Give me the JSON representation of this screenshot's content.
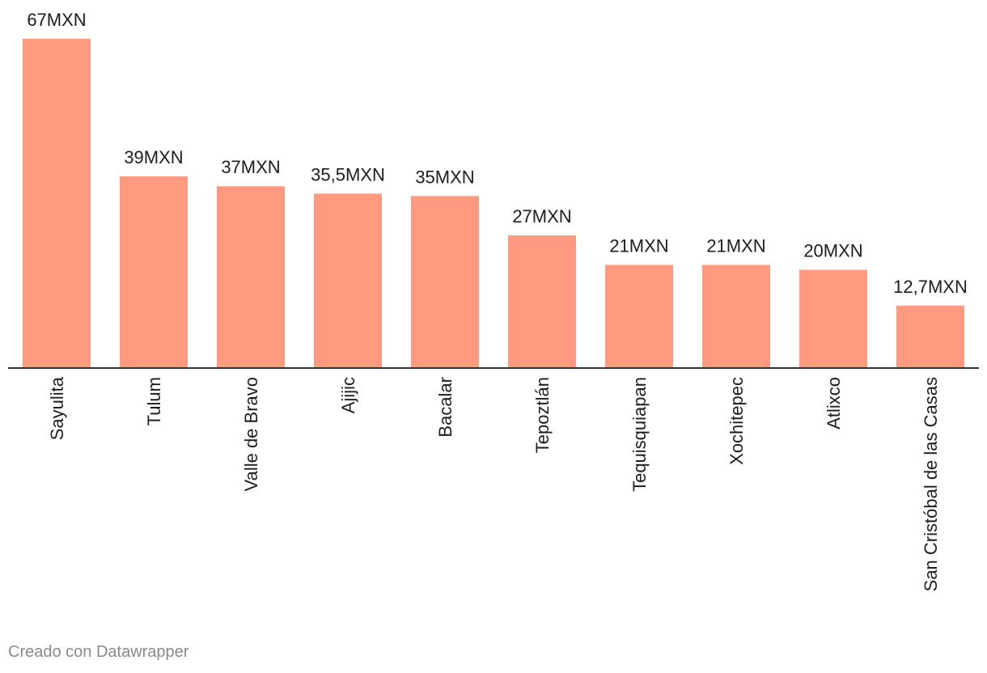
{
  "chart_data": {
    "type": "bar",
    "categories": [
      "Sayulita",
      "Tulum",
      "Valle de Bravo",
      "Ajijic",
      "Bacalar",
      "Tepoztlán",
      "Tequisquiapan",
      "Xochitepec",
      "Atlixco",
      "San Cristóbal de las Casas"
    ],
    "values": [
      67,
      39,
      37,
      35.5,
      35,
      27,
      21,
      21,
      20,
      12.7
    ],
    "value_labels": [
      "67MXN",
      "39MXN",
      "37MXN",
      "35,5MXN",
      "35MXN",
      "27MXN",
      "21MXN",
      "21MXN",
      "20MXN",
      "12,7MXN"
    ],
    "bar_color": "#ff9a80",
    "axis_color": "#333333",
    "ylim": [
      0,
      67
    ],
    "grid": false,
    "legend": "none"
  },
  "footer": {
    "credit": "Creado con Datawrapper"
  }
}
